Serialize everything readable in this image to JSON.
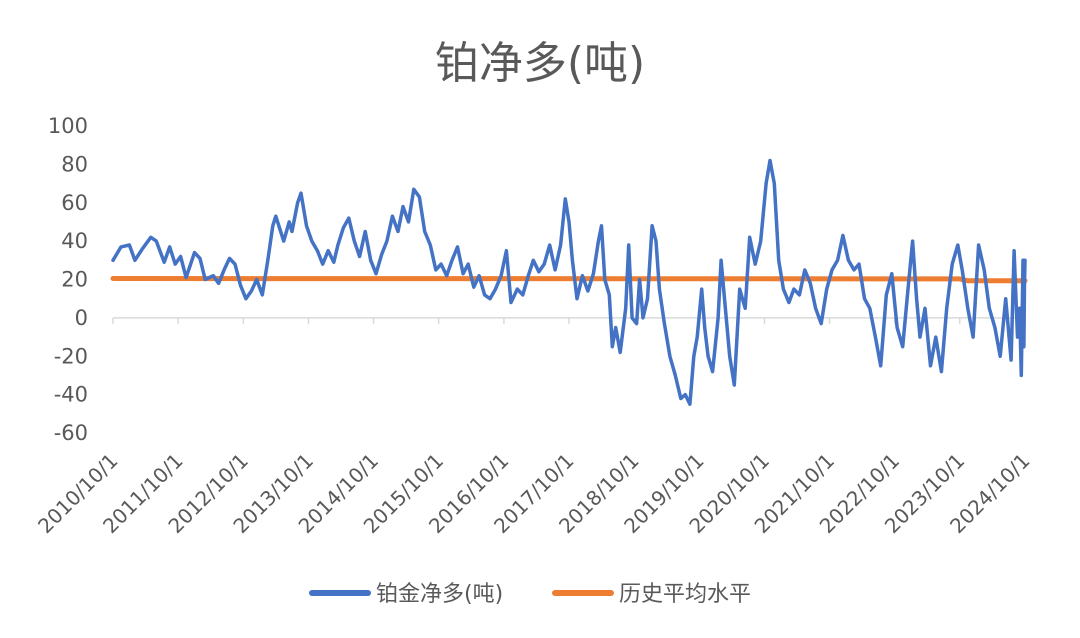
{
  "chart_data": {
    "type": "line",
    "title": "铂净多(吨)",
    "xlabel": "",
    "ylabel": "",
    "ylim": [
      -60,
      100
    ],
    "yticks": [
      100,
      80,
      60,
      40,
      20,
      0,
      -20,
      -40,
      -60
    ],
    "xlim": [
      "2010/10/1",
      "2024/10/1"
    ],
    "xtick_labels": [
      "2010/10/1",
      "2011/10/1",
      "2012/10/1",
      "2013/10/1",
      "2014/10/1",
      "2015/10/1",
      "2016/10/1",
      "2017/10/1",
      "2018/10/1",
      "2019/10/1",
      "2020/10/1",
      "2021/10/1",
      "2022/10/1",
      "2023/10/1",
      "2024/10/1"
    ],
    "grid": false,
    "legend_position": "bottom",
    "series": [
      {
        "name": "铂金净多(吨)",
        "color": "#4472C4",
        "points": [
          [
            "2010/10/1",
            30
          ],
          [
            "2010/11/15",
            37
          ],
          [
            "2011/1/1",
            38
          ],
          [
            "2011/2/1",
            30
          ],
          [
            "2011/3/15",
            36
          ],
          [
            "2011/5/1",
            42
          ],
          [
            "2011/6/1",
            40
          ],
          [
            "2011/7/15",
            29
          ],
          [
            "2011/8/15",
            37
          ],
          [
            "2011/9/15",
            28
          ],
          [
            "2011/10/15",
            32
          ],
          [
            "2011/11/15",
            21
          ],
          [
            "2012/1/1",
            34
          ],
          [
            "2012/2/1",
            31
          ],
          [
            "2012/3/1",
            20
          ],
          [
            "2012/4/15",
            22
          ],
          [
            "2012/5/15",
            18
          ],
          [
            "2012/6/15",
            25
          ],
          [
            "2012/7/15",
            31
          ],
          [
            "2012/8/15",
            28
          ],
          [
            "2012/9/15",
            17
          ],
          [
            "2012/10/15",
            10
          ],
          [
            "2012/11/15",
            14
          ],
          [
            "2012/12/15",
            20
          ],
          [
            "2013/1/15",
            12
          ],
          [
            "2013/2/15",
            30
          ],
          [
            "2013/3/15",
            48
          ],
          [
            "2013/4/1",
            53
          ],
          [
            "2013/5/15",
            40
          ],
          [
            "2013/6/15",
            50
          ],
          [
            "2013/7/1",
            45
          ],
          [
            "2013/8/1",
            60
          ],
          [
            "2013/8/20",
            65
          ],
          [
            "2013/9/20",
            48
          ],
          [
            "2013/10/20",
            40
          ],
          [
            "2013/11/20",
            35
          ],
          [
            "2013/12/20",
            28
          ],
          [
            "2014/1/20",
            35
          ],
          [
            "2014/2/20",
            29
          ],
          [
            "2014/3/15",
            38
          ],
          [
            "2014/4/15",
            47
          ],
          [
            "2014/5/15",
            52
          ],
          [
            "2014/6/15",
            40
          ],
          [
            "2014/7/15",
            32
          ],
          [
            "2014/8/15",
            45
          ],
          [
            "2014/9/15",
            30
          ],
          [
            "2014/10/15",
            23
          ],
          [
            "2014/11/15",
            33
          ],
          [
            "2014/12/15",
            40
          ],
          [
            "2015/1/15",
            53
          ],
          [
            "2015/2/15",
            45
          ],
          [
            "2015/3/15",
            58
          ],
          [
            "2015/4/15",
            50
          ],
          [
            "2015/5/15",
            67
          ],
          [
            "2015/6/15",
            63
          ],
          [
            "2015/7/15",
            45
          ],
          [
            "2015/8/15",
            38
          ],
          [
            "2015/9/15",
            25
          ],
          [
            "2015/10/15",
            28
          ],
          [
            "2015/11/15",
            22
          ],
          [
            "2015/12/15",
            30
          ],
          [
            "2016/1/15",
            37
          ],
          [
            "2016/2/15",
            23
          ],
          [
            "2016/3/15",
            28
          ],
          [
            "2016/4/15",
            16
          ],
          [
            "2016/5/15",
            22
          ],
          [
            "2016/6/15",
            12
          ],
          [
            "2016/7/15",
            10
          ],
          [
            "2016/8/15",
            15
          ],
          [
            "2016/9/15",
            22
          ],
          [
            "2016/10/15",
            35
          ],
          [
            "2016/11/10",
            8
          ],
          [
            "2016/12/15",
            15
          ],
          [
            "2017/1/15",
            12
          ],
          [
            "2017/2/15",
            22
          ],
          [
            "2017/3/15",
            30
          ],
          [
            "2017/4/15",
            24
          ],
          [
            "2017/5/15",
            28
          ],
          [
            "2017/6/15",
            38
          ],
          [
            "2017/7/15",
            25
          ],
          [
            "2017/8/15",
            38
          ],
          [
            "2017/9/10",
            62
          ],
          [
            "2017/10/1",
            50
          ],
          [
            "2017/10/20",
            30
          ],
          [
            "2017/11/15",
            10
          ],
          [
            "2017/12/15",
            22
          ],
          [
            "2018/1/15",
            14
          ],
          [
            "2018/2/15",
            23
          ],
          [
            "2018/3/15",
            40
          ],
          [
            "2018/4/1",
            48
          ],
          [
            "2018/4/20",
            20
          ],
          [
            "2018/5/15",
            12
          ],
          [
            "2018/6/1",
            -15
          ],
          [
            "2018/6/20",
            -5
          ],
          [
            "2018/7/15",
            -18
          ],
          [
            "2018/8/15",
            5
          ],
          [
            "2018/9/1",
            38
          ],
          [
            "2018/9/20",
            0
          ],
          [
            "2018/10/15",
            -3
          ],
          [
            "2018/11/1",
            20
          ],
          [
            "2018/11/20",
            0
          ],
          [
            "2018/12/15",
            10
          ],
          [
            "2019/1/10",
            48
          ],
          [
            "2019/2/1",
            40
          ],
          [
            "2019/2/20",
            15
          ],
          [
            "2019/3/20",
            -3
          ],
          [
            "2019/4/20",
            -20
          ],
          [
            "2019/5/20",
            -30
          ],
          [
            "2019/6/20",
            -42
          ],
          [
            "2019/7/15",
            -40
          ],
          [
            "2019/8/10",
            -45
          ],
          [
            "2019/9/1",
            -20
          ],
          [
            "2019/9/20",
            -10
          ],
          [
            "2019/10/15",
            15
          ],
          [
            "2019/11/1",
            -5
          ],
          [
            "2019/11/20",
            -20
          ],
          [
            "2019/12/15",
            -28
          ],
          [
            "2020/1/15",
            0
          ],
          [
            "2020/2/1",
            30
          ],
          [
            "2020/2/20",
            10
          ],
          [
            "2020/3/20",
            -20
          ],
          [
            "2020/4/15",
            -35
          ],
          [
            "2020/5/15",
            15
          ],
          [
            "2020/6/15",
            5
          ],
          [
            "2020/7/10",
            42
          ],
          [
            "2020/8/10",
            28
          ],
          [
            "2020/9/10",
            40
          ],
          [
            "2020/10/10",
            70
          ],
          [
            "2020/11/1",
            82
          ],
          [
            "2020/11/25",
            70
          ],
          [
            "2020/12/20",
            30
          ],
          [
            "2021/1/15",
            15
          ],
          [
            "2021/2/15",
            8
          ],
          [
            "2021/3/15",
            15
          ],
          [
            "2021/4/15",
            12
          ],
          [
            "2021/5/15",
            25
          ],
          [
            "2021/6/15",
            18
          ],
          [
            "2021/7/15",
            5
          ],
          [
            "2021/8/15",
            -3
          ],
          [
            "2021/9/15",
            15
          ],
          [
            "2021/10/15",
            25
          ],
          [
            "2021/11/15",
            30
          ],
          [
            "2021/12/15",
            43
          ],
          [
            "2022/1/15",
            30
          ],
          [
            "2022/2/15",
            25
          ],
          [
            "2022/3/15",
            28
          ],
          [
            "2022/4/15",
            10
          ],
          [
            "2022/5/15",
            5
          ],
          [
            "2022/6/15",
            -10
          ],
          [
            "2022/7/15",
            -25
          ],
          [
            "2022/8/15",
            12
          ],
          [
            "2022/9/15",
            23
          ],
          [
            "2022/10/15",
            -5
          ],
          [
            "2022/11/15",
            -15
          ],
          [
            "2022/12/15",
            15
          ],
          [
            "2023/1/10",
            40
          ],
          [
            "2023/2/1",
            10
          ],
          [
            "2023/2/20",
            -10
          ],
          [
            "2023/3/20",
            5
          ],
          [
            "2023/4/20",
            -25
          ],
          [
            "2023/5/20",
            -10
          ],
          [
            "2023/6/20",
            -28
          ],
          [
            "2023/7/20",
            5
          ],
          [
            "2023/8/20",
            28
          ],
          [
            "2023/9/20",
            38
          ],
          [
            "2023/10/15",
            25
          ],
          [
            "2023/11/15",
            5
          ],
          [
            "2023/12/15",
            -10
          ],
          [
            "2024/1/15",
            38
          ],
          [
            "2024/2/15",
            25
          ],
          [
            "2024/3/15",
            5
          ],
          [
            "2024/4/15",
            -5
          ],
          [
            "2024/5/15",
            -20
          ],
          [
            "2024/6/15",
            10
          ],
          [
            "2024/7/15",
            -22
          ],
          [
            "2024/8/1",
            35
          ],
          [
            "2024/8/20",
            -10
          ],
          [
            "2024/9/1",
            5
          ],
          [
            "2024/9/10",
            -30
          ],
          [
            "2024/9/20",
            30
          ],
          [
            "2024/9/25",
            -15
          ],
          [
            "2024/9/28",
            18
          ],
          [
            "2024/10/1",
            30
          ]
        ]
      },
      {
        "name": "历史平均水平",
        "color": "#ED7D31",
        "points": [
          [
            "2010/10/1",
            20.5
          ],
          [
            "2023/10/1",
            20.3
          ],
          [
            "2023/11/15",
            19.3
          ],
          [
            "2024/10/1",
            19.3
          ]
        ]
      }
    ]
  }
}
